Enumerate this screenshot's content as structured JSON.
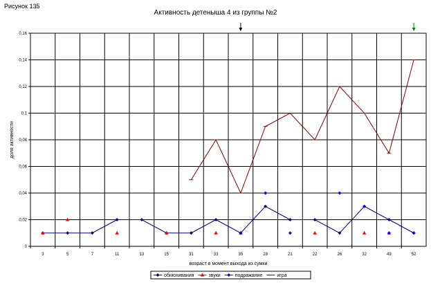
{
  "figure_label": "Рисунок 135",
  "chart_data": {
    "type": "line",
    "title": "Активность детеныша 4 из группы №2",
    "xlabel": "возраст в момент выхода из сумки",
    "ylabel": "доля активности",
    "categories": [
      "3",
      "5",
      "7",
      "11",
      "13",
      "15",
      "31",
      "33",
      "35",
      "28",
      "21",
      "22",
      "26",
      "32",
      "49",
      "52"
    ],
    "y_tick_labels": [
      "0",
      "0,02",
      "0,04",
      "0,06",
      "0,08",
      "0,1",
      "0,12",
      "0,14",
      "0,16"
    ],
    "ylim": [
      0,
      0.16
    ],
    "grid": true,
    "legend_position": "bottom",
    "series": [
      {
        "name": "обнюхивания",
        "color": "#000080",
        "marker": "diamond",
        "line": true,
        "values": [
          0.01,
          0.01,
          0.01,
          0.02,
          0.02,
          0.01,
          0.01,
          0.02,
          0.01,
          0.03,
          0.02,
          0.02,
          0.01,
          0.03,
          0.02,
          0.01
        ]
      },
      {
        "name": "звуки",
        "color": "#ff0000",
        "marker": "triangle",
        "line": false,
        "values": [
          0.01,
          0.02,
          null,
          0.01,
          null,
          0.01,
          null,
          0.01,
          0.01,
          null,
          null,
          0.01,
          null,
          0.01,
          0.01,
          null
        ]
      },
      {
        "name": "подражание",
        "color": "#0000ff",
        "marker": "diamond",
        "line": false,
        "values": [
          null,
          null,
          null,
          null,
          null,
          null,
          null,
          null,
          0.01,
          0.04,
          0.01,
          null,
          0.04,
          0.03,
          0.01,
          0.01
        ]
      },
      {
        "name": "игра",
        "color": "#800000",
        "marker": "none",
        "line": true,
        "values": [
          null,
          null,
          null,
          null,
          null,
          null,
          0.05,
          0.08,
          0.04,
          0.09,
          0.1,
          0.08,
          0.12,
          0.1,
          0.07,
          0.14
        ]
      }
    ],
    "markers_above_plot": [
      {
        "category": "35",
        "color": "#000000"
      },
      {
        "category": "52",
        "color": "#008000"
      }
    ]
  }
}
